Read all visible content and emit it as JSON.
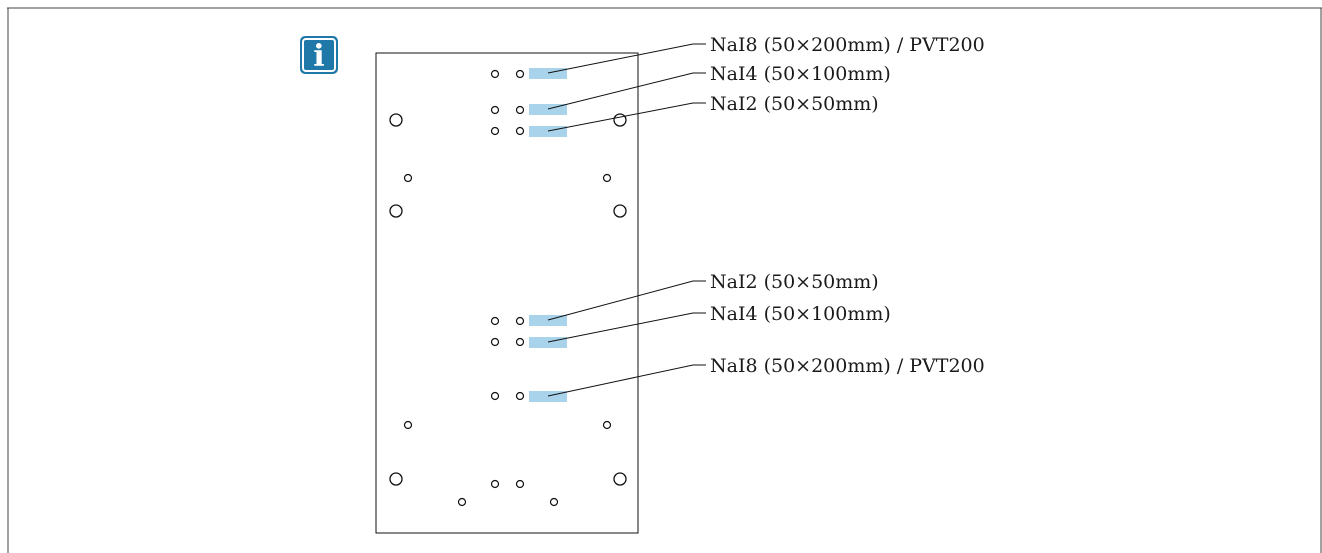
{
  "info_icon": {
    "glyph": "i",
    "color": "#1f78a8"
  },
  "colors": {
    "strip": "#a9d3ea",
    "line": "#000000"
  },
  "labels": {
    "top_1": "NaI8 (50×200mm) / PVT200",
    "top_2": "NaI4 (50×100mm)",
    "top_3": "NaI2 (50×50mm)",
    "bottom_1": "NaI2 (50×50mm)",
    "bottom_2": "NaI4 (50×100mm)",
    "bottom_3": "NaI8 (50×200mm) / PVT200"
  }
}
